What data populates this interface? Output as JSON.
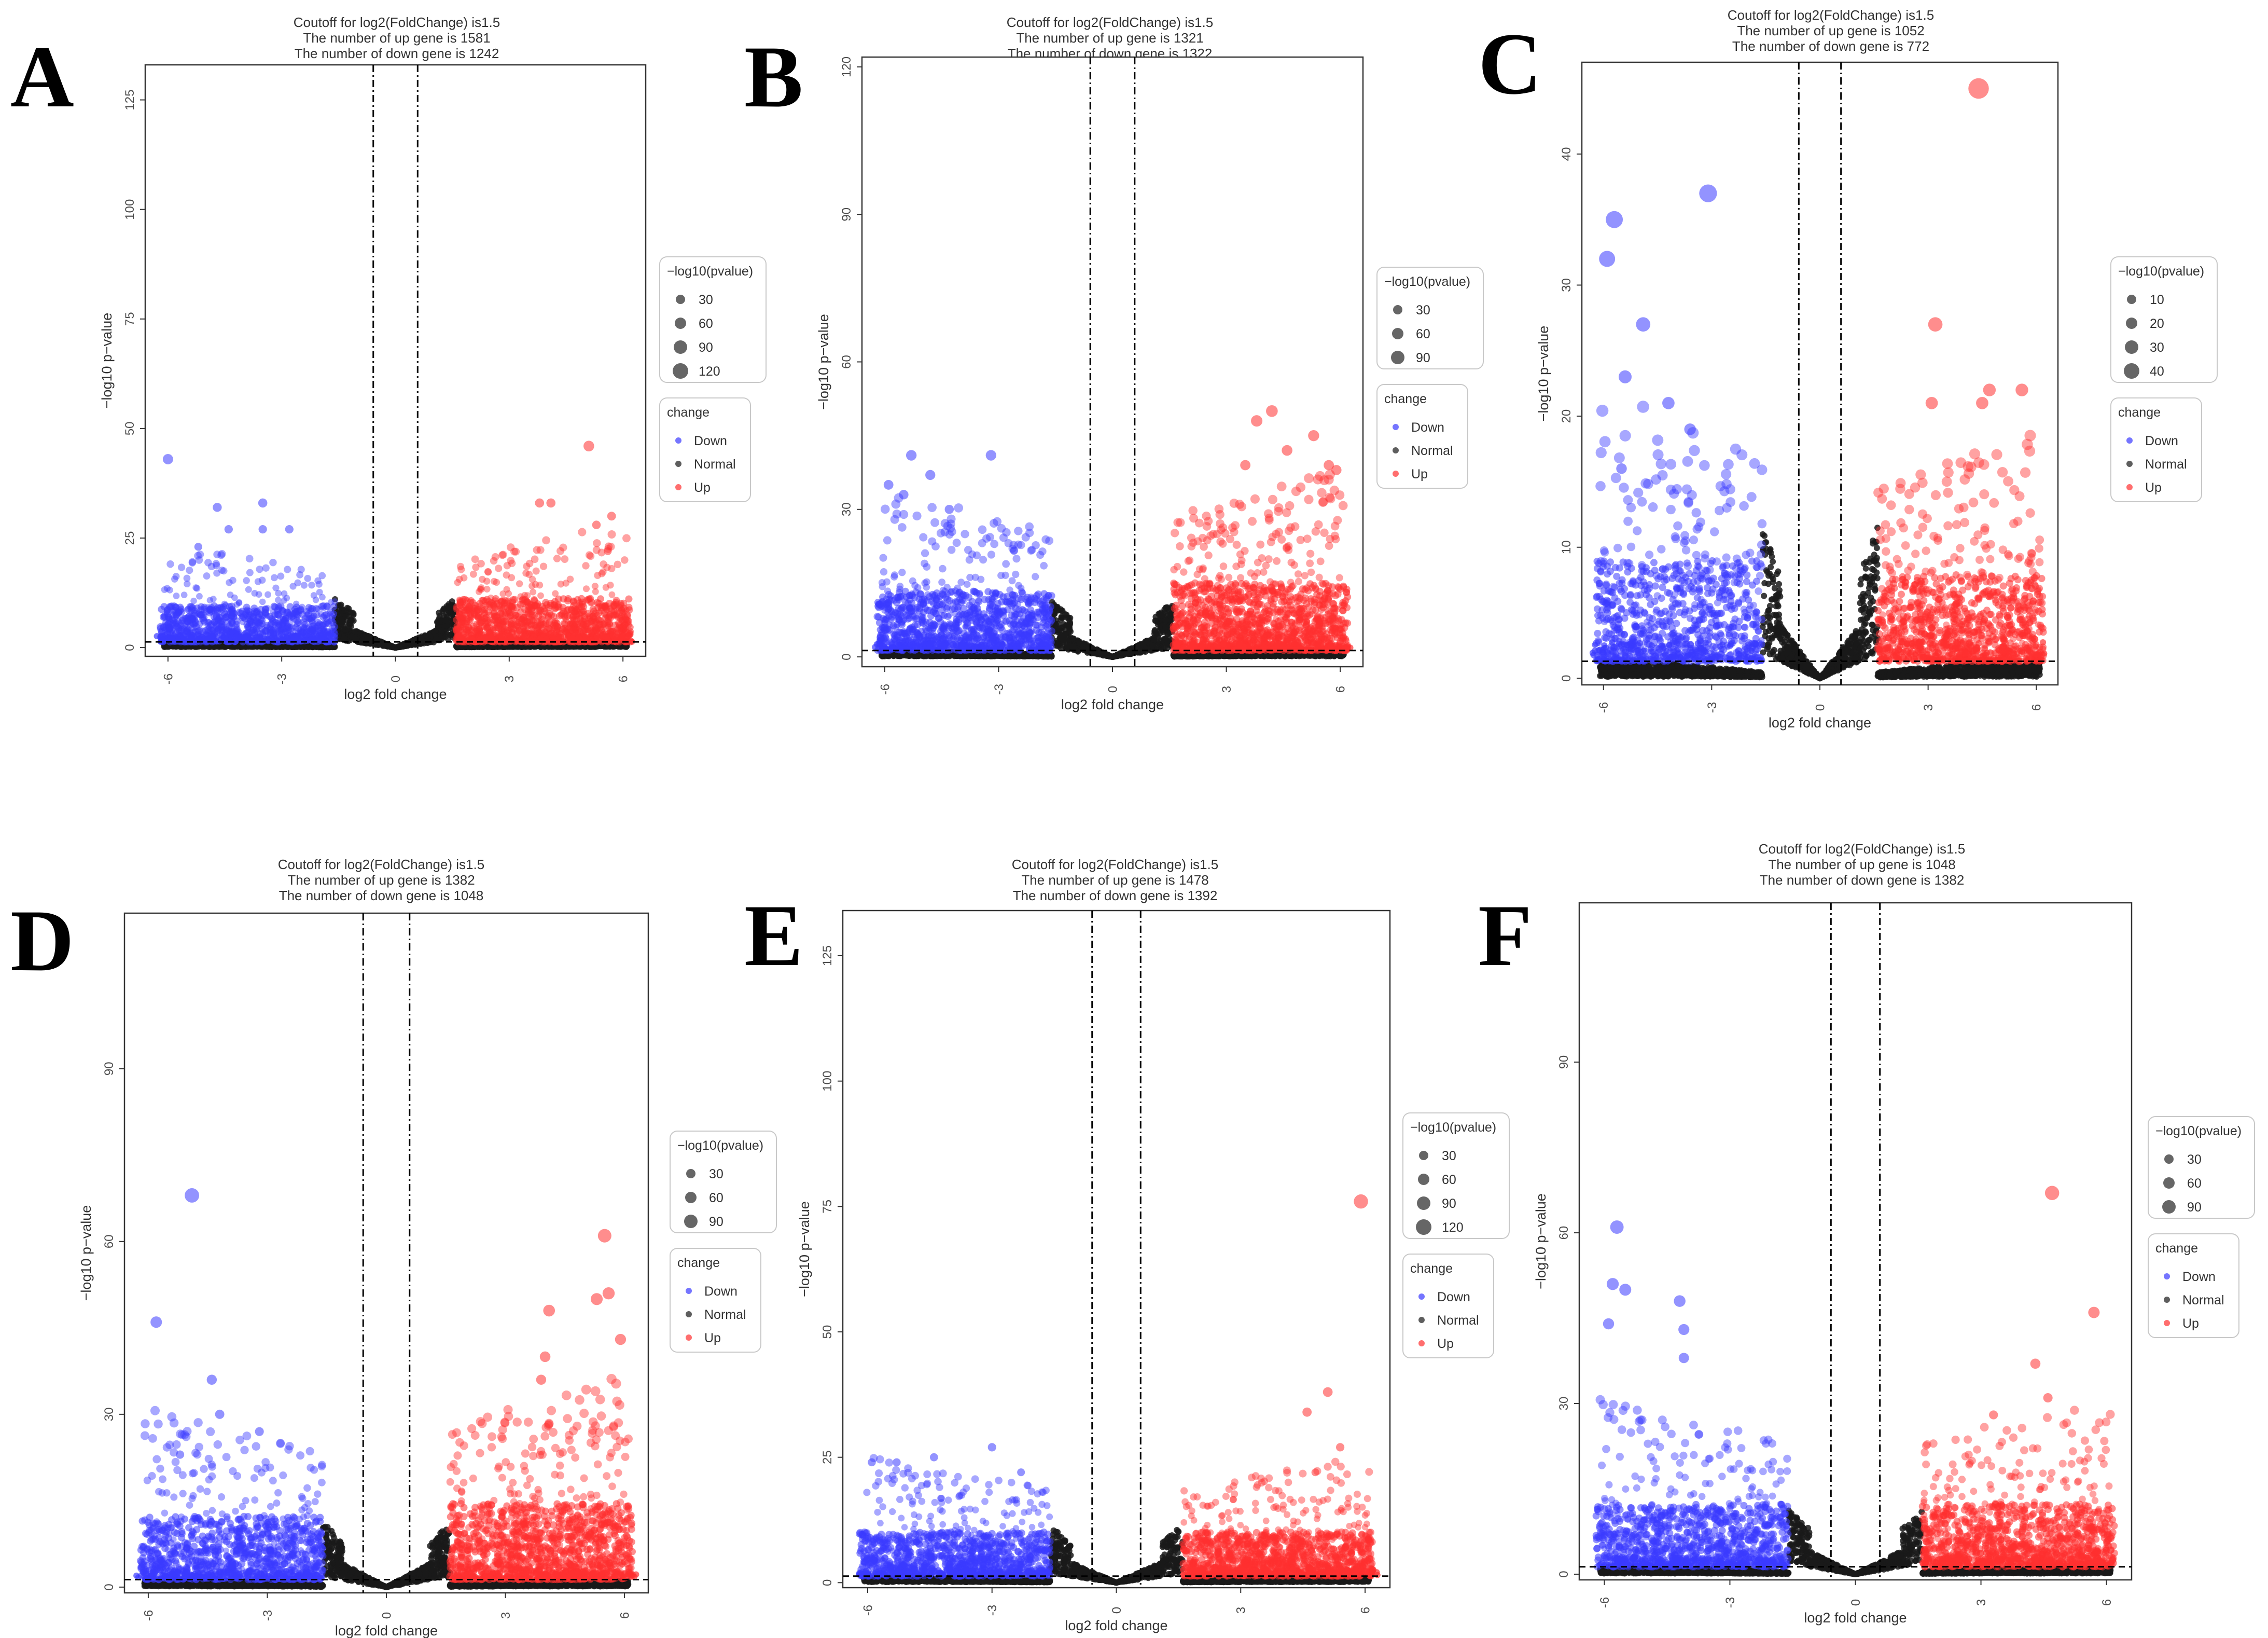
{
  "figure": {
    "colors": {
      "down": "#3b3bff",
      "normal": "#1a1a1a",
      "up": "#ff3030",
      "axis": "#333333",
      "legend_dot": "#666666"
    }
  },
  "chart_data": [
    {
      "panel": "A",
      "type": "scatter",
      "title_lines": [
        "Coutoff for log2(FoldChange) is1.5",
        "The number of up gene is 1581",
        "The number of down gene is 1242"
      ],
      "xlabel": "log2 fold change",
      "ylabel": "−log10 p−value",
      "xlim": [
        -6.6,
        6.6
      ],
      "ylim": [
        -2,
        133
      ],
      "x_ticks": [
        -6,
        -3,
        0,
        3,
        6
      ],
      "y_ticks": [
        0,
        25,
        50,
        75,
        100,
        125
      ],
      "fc_cutoff": 0.585,
      "p_threshold": 1.3,
      "legend_size_title": "−log10(pvalue)",
      "legend_sizes": [
        30,
        60,
        90,
        120
      ],
      "legend_change_title": "change",
      "legend_change": [
        "Down",
        "Normal",
        "Up"
      ],
      "highlights": [
        [
          -6,
          43
        ],
        [
          -4.7,
          32
        ],
        [
          -3.5,
          33
        ],
        [
          -3.5,
          27
        ],
        [
          -2.8,
          27
        ],
        [
          -4.4,
          27
        ],
        [
          -5.2,
          23
        ],
        [
          5.1,
          46
        ],
        [
          3.8,
          33
        ],
        [
          4.1,
          33
        ],
        [
          5.7,
          30
        ],
        [
          5.3,
          28
        ],
        [
          5.6,
          22
        ]
      ],
      "density": {
        "down_h": 15,
        "up_h": 18,
        "down_n": 180,
        "up_n": 220
      }
    },
    {
      "panel": "B",
      "type": "scatter",
      "title_lines": [
        "Coutoff for log2(FoldChange) is1.5",
        "The number of up gene is 1321",
        "The number of down gene is 1322"
      ],
      "xlabel": "log2 fold change",
      "ylabel": "−log10 p−value",
      "xlim": [
        -6.6,
        6.6
      ],
      "ylim": [
        -2,
        122
      ],
      "x_ticks": [
        -6,
        -3,
        0,
        3,
        6
      ],
      "y_ticks": [
        0,
        30,
        60,
        90,
        120
      ],
      "fc_cutoff": 0.585,
      "p_threshold": 1.3,
      "legend_size_title": "−log10(pvalue)",
      "legend_sizes": [
        30,
        60,
        90
      ],
      "legend_change_title": "change",
      "legend_change": [
        "Down",
        "Normal",
        "Up"
      ],
      "highlights": [
        [
          -5.3,
          41
        ],
        [
          -3.2,
          41
        ],
        [
          -5.9,
          35
        ],
        [
          -4.8,
          37
        ],
        [
          -5.5,
          33
        ],
        [
          -4.3,
          30
        ],
        [
          4.2,
          50
        ],
        [
          3.8,
          48
        ],
        [
          5.3,
          45
        ],
        [
          5.7,
          39
        ],
        [
          3.5,
          39
        ],
        [
          4.6,
          42
        ],
        [
          5.9,
          38
        ]
      ],
      "density": {
        "down_h": 22,
        "up_h": 25,
        "down_n": 220,
        "up_n": 260
      }
    },
    {
      "panel": "C",
      "type": "scatter",
      "title_lines": [
        "Coutoff for log2(FoldChange) is1.5",
        "The number of up gene is 1052",
        "The number of down gene is 772"
      ],
      "xlabel": "log2 fold change",
      "ylabel": "−log10 p−value",
      "xlim": [
        -6.6,
        6.6
      ],
      "ylim": [
        -0.5,
        47
      ],
      "x_ticks": [
        -6,
        -3,
        0,
        3,
        6
      ],
      "y_ticks": [
        0,
        10,
        20,
        30,
        40
      ],
      "fc_cutoff": 0.585,
      "p_threshold": 1.3,
      "legend_size_title": "−log10(pvalue)",
      "legend_sizes": [
        10,
        20,
        30,
        40
      ],
      "legend_change_title": "change",
      "legend_change": [
        "Down",
        "Normal",
        "Up"
      ],
      "highlights": [
        [
          4.4,
          45
        ],
        [
          -3.1,
          37
        ],
        [
          -5.7,
          35
        ],
        [
          -5.9,
          32
        ],
        [
          -4.9,
          27
        ],
        [
          -5.4,
          23
        ],
        [
          -4.2,
          21
        ],
        [
          -3.6,
          19
        ],
        [
          -5.5,
          16
        ],
        [
          3.2,
          27
        ],
        [
          4.7,
          22
        ],
        [
          5.6,
          22
        ],
        [
          4.5,
          21
        ],
        [
          3.1,
          21
        ]
      ],
      "density": {
        "down_h": 14,
        "up_h": 12,
        "down_n": 170,
        "up_n": 200
      }
    },
    {
      "panel": "D",
      "type": "scatter",
      "title_lines": [
        "Coutoff for log2(FoldChange) is1.5",
        "The number of up gene is 1382",
        "The number of down gene is 1048"
      ],
      "xlabel": "log2 fold change",
      "ylabel": "−log10 p−value",
      "xlim": [
        -6.6,
        6.6
      ],
      "ylim": [
        -1,
        117
      ],
      "x_ticks": [
        -6,
        -3,
        0,
        3,
        6
      ],
      "y_ticks": [
        0,
        30,
        60,
        90
      ],
      "fc_cutoff": 0.585,
      "p_threshold": 1.3,
      "legend_size_title": "−log10(pvalue)",
      "legend_sizes": [
        30,
        60,
        90
      ],
      "legend_change_title": "change",
      "legend_change": [
        "Down",
        "Normal",
        "Up"
      ],
      "highlights": [
        [
          -4.9,
          68
        ],
        [
          -5.8,
          46
        ],
        [
          -4.4,
          36
        ],
        [
          -4.2,
          30
        ],
        [
          -5.2,
          23
        ],
        [
          -3.2,
          27
        ],
        [
          5.5,
          61
        ],
        [
          5.6,
          51
        ],
        [
          5.3,
          50
        ],
        [
          4.1,
          48
        ],
        [
          3.9,
          36
        ],
        [
          5.9,
          43
        ],
        [
          4.0,
          40
        ]
      ],
      "density": {
        "down_h": 20,
        "up_h": 24,
        "down_n": 200,
        "up_n": 250
      }
    },
    {
      "panel": "E",
      "type": "scatter",
      "title_lines": [
        "Coutoff for log2(FoldChange) is1.5",
        "The number of up gene is 1478",
        "The number of down gene is 1392"
      ],
      "xlabel": "log2 fold change",
      "ylabel": "−log10 p−value",
      "xlim": [
        -6.6,
        6.6
      ],
      "ylim": [
        -1,
        134
      ],
      "x_ticks": [
        -6,
        -3,
        0,
        3,
        6
      ],
      "y_ticks": [
        0,
        25,
        50,
        75,
        100,
        125
      ],
      "fc_cutoff": 0.585,
      "p_threshold": 1.3,
      "legend_size_title": "−log10(pvalue)",
      "legend_sizes": [
        30,
        60,
        90,
        120
      ],
      "legend_change_title": "change",
      "legend_change": [
        "Down",
        "Normal",
        "Up"
      ],
      "highlights": [
        [
          5.9,
          76
        ],
        [
          5.1,
          38
        ],
        [
          4.6,
          34
        ],
        [
          -3.0,
          27
        ],
        [
          -4.4,
          25
        ],
        [
          -5.9,
          24
        ],
        [
          -5.3,
          24
        ],
        [
          -2.3,
          22
        ],
        [
          5.4,
          27
        ],
        [
          4.8,
          22
        ]
      ],
      "density": {
        "down_h": 16,
        "up_h": 16,
        "down_n": 200,
        "up_n": 230
      }
    },
    {
      "panel": "F",
      "type": "scatter",
      "title_lines": [
        "Coutoff for log2(FoldChange) is1.5",
        "The number of up gene is 1048",
        "The number of down gene is 1382"
      ],
      "xlabel": "log2 fold change",
      "ylabel": "−log10 p−value",
      "xlim": [
        -6.6,
        6.6
      ],
      "ylim": [
        -1,
        118
      ],
      "x_ticks": [
        -6,
        -3,
        0,
        3,
        6
      ],
      "y_ticks": [
        0,
        30,
        60,
        90
      ],
      "fc_cutoff": 0.585,
      "p_threshold": 1.3,
      "legend_size_title": "−log10(pvalue)",
      "legend_sizes": [
        30,
        60,
        90
      ],
      "legend_change_title": "change",
      "legend_change": [
        "Down",
        "Normal",
        "Up"
      ],
      "highlights": [
        [
          4.7,
          67
        ],
        [
          -5.7,
          61
        ],
        [
          -5.8,
          51
        ],
        [
          -5.5,
          50
        ],
        [
          -5.9,
          44
        ],
        [
          -4.2,
          48
        ],
        [
          -4.1,
          43
        ],
        [
          -4.1,
          38
        ],
        [
          5.7,
          46
        ],
        [
          4.3,
          37
        ],
        [
          3.3,
          28
        ],
        [
          4.6,
          31
        ]
      ],
      "density": {
        "down_h": 20,
        "up_h": 20,
        "down_n": 200,
        "up_n": 220
      }
    }
  ]
}
